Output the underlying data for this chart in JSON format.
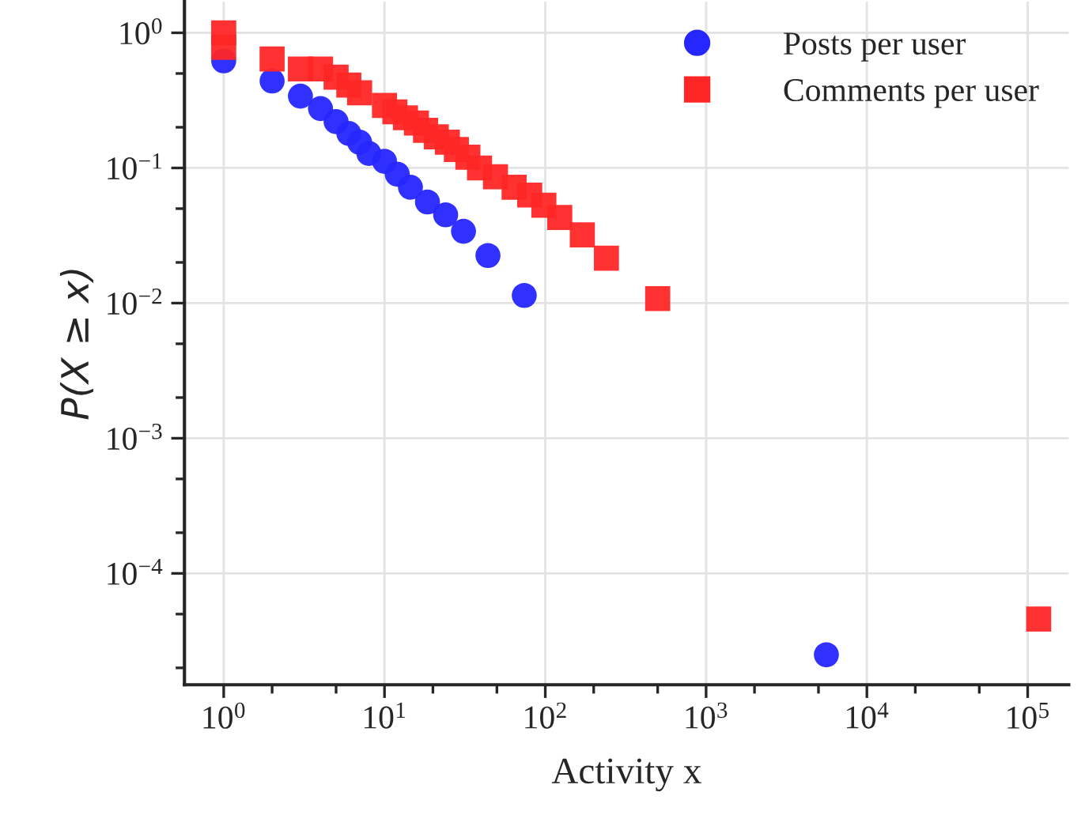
{
  "chart_data": {
    "type": "scatter",
    "xlabel": "Activity x",
    "ylabel": "P(X ≥ x)",
    "log": "xy",
    "grid": true,
    "legend": "top right",
    "xlim": [
      0.57,
      180000
    ],
    "ylim": [
      1.5e-05,
      1.7
    ],
    "xticks": [
      {
        "value": 1,
        "label": "10$^{0}$"
      },
      {
        "value": 10,
        "label": "10$^{1}$"
      },
      {
        "value": 100,
        "label": "10$^{2}$"
      },
      {
        "value": 1000,
        "label": "10$^{3}$"
      },
      {
        "value": 10000,
        "label": "10$^{4}$"
      },
      {
        "value": 100000,
        "label": "10$^{5}$"
      },
      {
        "value": 2,
        "label": null
      },
      {
        "value": 5,
        "label": null
      },
      {
        "value": 20,
        "label": null
      },
      {
        "value": 50,
        "label": null
      },
      {
        "value": 200,
        "label": null
      },
      {
        "value": 500,
        "label": null
      },
      {
        "value": 2000,
        "label": null
      },
      {
        "value": 5000,
        "label": null
      },
      {
        "value": 20000,
        "label": null
      },
      {
        "value": 50000,
        "label": null
      }
    ],
    "yticks": [
      {
        "value": 1,
        "label": "10$^{0}$"
      },
      {
        "value": 0.1,
        "label": "10$^{−1}$"
      },
      {
        "value": 0.01,
        "label": "10$^{−2}$"
      },
      {
        "value": 0.001,
        "label": "10$^{−3}$"
      },
      {
        "value": 0.0001,
        "label": "10$^{−4}$"
      },
      {
        "value": 0.5,
        "label": null
      },
      {
        "value": 0.2,
        "label": null
      },
      {
        "value": 0.05,
        "label": null
      },
      {
        "value": 0.02,
        "label": null
      },
      {
        "value": 0.005,
        "label": null
      },
      {
        "value": 0.002,
        "label": null
      },
      {
        "value": 0.0005,
        "label": null
      },
      {
        "value": 0.0002,
        "label": null
      },
      {
        "value": 5e-05,
        "label": null
      },
      {
        "value": 2e-05,
        "label": null
      }
    ],
    "series": [
      {
        "name": "Posts per user",
        "color": "#2626ff",
        "marker": "circle",
        "x": [
          1,
          2,
          3,
          4,
          5,
          6,
          7,
          8,
          10,
          12,
          14.5,
          18.5,
          24,
          31,
          44,
          74,
          5600
        ],
        "values": [
          0.62,
          0.44,
          0.34,
          0.275,
          0.22,
          0.18,
          0.155,
          0.128,
          0.112,
          0.09,
          0.072,
          0.056,
          0.045,
          0.034,
          0.0225,
          0.0114,
          2.5e-05
        ]
      },
      {
        "name": "Comments per user",
        "color": "#ff2626",
        "marker": "square",
        "x": [
          1,
          1,
          2,
          3,
          4,
          5,
          6,
          7,
          10,
          11.6,
          13.5,
          15.8,
          18,
          21,
          24.6,
          28,
          33,
          39,
          49,
          64,
          80,
          98,
          123,
          170,
          240,
          500,
          117000
        ],
        "values": [
          1.0,
          0.78,
          0.64,
          0.54,
          0.54,
          0.47,
          0.41,
          0.36,
          0.29,
          0.26,
          0.235,
          0.215,
          0.19,
          0.17,
          0.155,
          0.137,
          0.12,
          0.1,
          0.086,
          0.072,
          0.063,
          0.053,
          0.043,
          0.032,
          0.0215,
          0.0108,
          4.6e-05
        ]
      }
    ]
  }
}
